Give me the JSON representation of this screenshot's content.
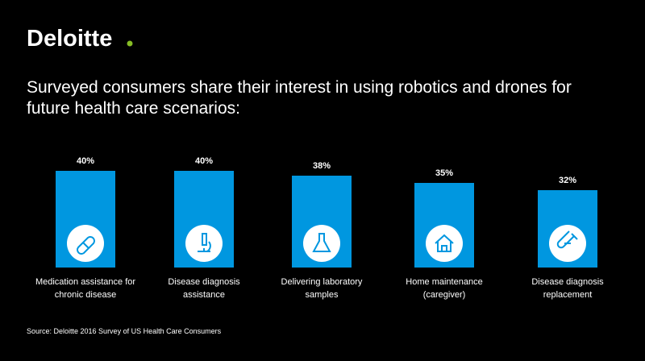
{
  "chart_data": {
    "type": "bar",
    "logo": "Deloitte",
    "title": [
      "Surveyed consumers share their interest in using robotics and drones for",
      "future health care scenarios:"
    ],
    "categories": [
      [
        "Medication assistance for",
        "chronic disease"
      ],
      [
        "Disease diagnosis",
        "assistance"
      ],
      [
        "Delivering laboratory",
        "samples"
      ],
      [
        "Home maintenance",
        "(caregiver)"
      ],
      [
        "Disease diagnosis",
        "replacement"
      ]
    ],
    "values": [
      40,
      40,
      38,
      35,
      32
    ],
    "value_labels": [
      "40%",
      "40%",
      "38%",
      "35%",
      "32%"
    ],
    "color": "#0097e0",
    "source": "Source: Deloitte 2016 Survey of US Health Care Consumers"
  }
}
